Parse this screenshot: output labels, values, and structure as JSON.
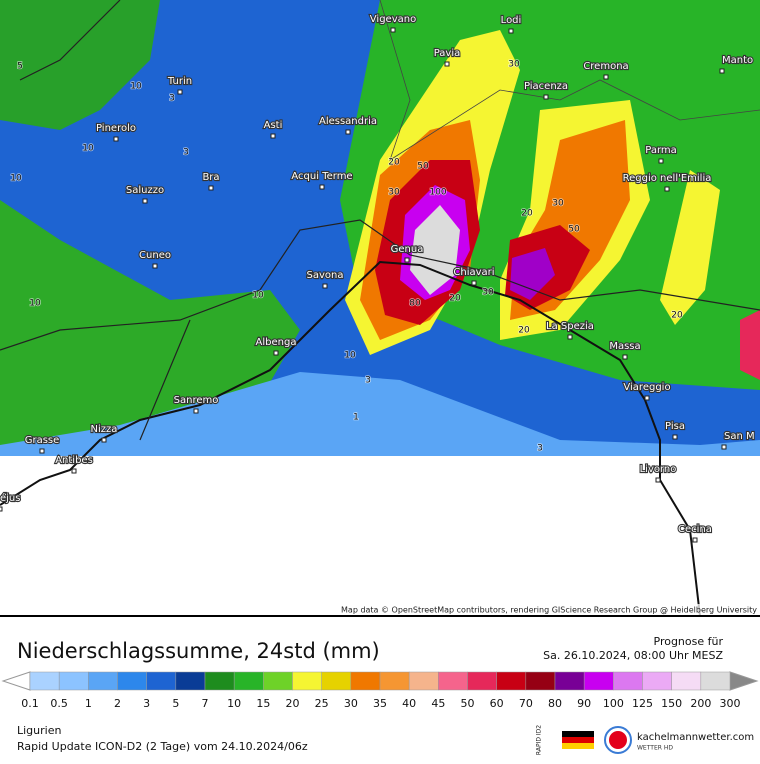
{
  "map": {
    "cities": [
      "Vigevano",
      "Lodi",
      "Pavia",
      "Cremona",
      "Manto",
      "Turin",
      "Piacenza",
      "Pinerolo",
      "Asti",
      "Alessandria",
      "Parma",
      "Acqui Terme",
      "Reggio nell'Emilia",
      "Bra",
      "Saluzzo",
      "Cuneo",
      "Genua",
      "Savona",
      "Chiavari",
      "La Spezia",
      "Massa",
      "Albenga",
      "Viareggio",
      "Sanremo",
      "Pisa",
      "Nizza",
      "Grasse",
      "Antibes",
      "San M",
      "Livorno",
      "Cecina",
      "éjus"
    ],
    "contour_labels": [
      10,
      10,
      10,
      10,
      3,
      3,
      3,
      3,
      30,
      30,
      30,
      30,
      50,
      50,
      100,
      20,
      20,
      20,
      20,
      20,
      80,
      1,
      5,
      10,
      10
    ],
    "attribution": "Map data © OpenStreetMap contributors, rendering GIScience Research Group @ Heidelberg University"
  },
  "legend": {
    "title": "Niederschlagssumme, 24std (mm)",
    "ticks": [
      0.1,
      0.5,
      1,
      2,
      3,
      5,
      7,
      10,
      15,
      20,
      25,
      30,
      35,
      40,
      45,
      50,
      60,
      70,
      80,
      90,
      100,
      125,
      150,
      200,
      300
    ],
    "colors": [
      "#aad2ff",
      "#8cc3ff",
      "#5aa5f5",
      "#2d87eb",
      "#1e64d2",
      "#0a3c96",
      "#1e8c1e",
      "#28b428",
      "#6ed228",
      "#f5f532",
      "#e6d200",
      "#f07800",
      "#f59632",
      "#f5b48c",
      "#f5648c",
      "#e6285a",
      "#c80014",
      "#960014",
      "#780096",
      "#c800f0",
      "#dc78f0",
      "#ebaaf5",
      "#f5dcf5",
      "#dcdcdc"
    ]
  },
  "forecast": {
    "label": "Prognose für",
    "time": "Sa. 26.10.2024, 08:00 Uhr MESZ"
  },
  "footer": {
    "region": "Ligurien",
    "model": "Rapid Update ICON-D2 (2 Tage) vom  24.10.2024/06z",
    "badge": "RAPID ID2",
    "brand": "kachelmannwetter.com",
    "brand_sub": "WETTER HD"
  }
}
